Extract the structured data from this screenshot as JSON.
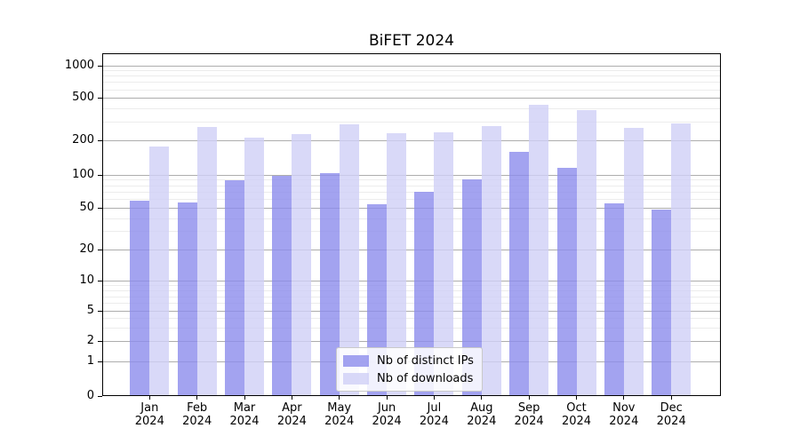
{
  "chart_data": {
    "type": "bar",
    "title": "BiFET 2024",
    "categories": [
      "Jan 2024",
      "Feb 2024",
      "Mar 2024",
      "Apr 2024",
      "May 2024",
      "Jun 2024",
      "Jul 2024",
      "Aug 2024",
      "Sep 2024",
      "Oct 2024",
      "Nov 2024",
      "Dec 2024"
    ],
    "months": [
      {
        "m": "Jan",
        "y": "2024"
      },
      {
        "m": "Feb",
        "y": "2024"
      },
      {
        "m": "Mar",
        "y": "2024"
      },
      {
        "m": "Apr",
        "y": "2024"
      },
      {
        "m": "May",
        "y": "2024"
      },
      {
        "m": "Jun",
        "y": "2024"
      },
      {
        "m": "Jul",
        "y": "2024"
      },
      {
        "m": "Aug",
        "y": "2024"
      },
      {
        "m": "Sep",
        "y": "2024"
      },
      {
        "m": "Oct",
        "y": "2024"
      },
      {
        "m": "Nov",
        "y": "2024"
      },
      {
        "m": "Dec",
        "y": "2024"
      }
    ],
    "series": [
      {
        "name": "Nb of distinct IPs",
        "color": "rgba(140,140,236,0.8)",
        "values": [
          58,
          56,
          89,
          98,
          104,
          54,
          70,
          91,
          160,
          114,
          55,
          48
        ]
      },
      {
        "name": "Nb of downloads",
        "color": "rgba(208,208,246,0.8)",
        "values": [
          176,
          266,
          212,
          229,
          282,
          234,
          239,
          271,
          436,
          387,
          263,
          289
        ]
      }
    ],
    "xlabel": "",
    "ylabel": "",
    "yscale": "symlog",
    "yticks": [
      0,
      1,
      2,
      5,
      10,
      20,
      50,
      100,
      200,
      500,
      1000
    ],
    "ytick_labels": [
      "0",
      "1",
      "2",
      "5",
      "10",
      "20",
      "50",
      "100",
      "200",
      "500",
      "1000"
    ],
    "ylim": [
      0,
      1300
    ],
    "grid": true,
    "legend_position": "lower center"
  }
}
